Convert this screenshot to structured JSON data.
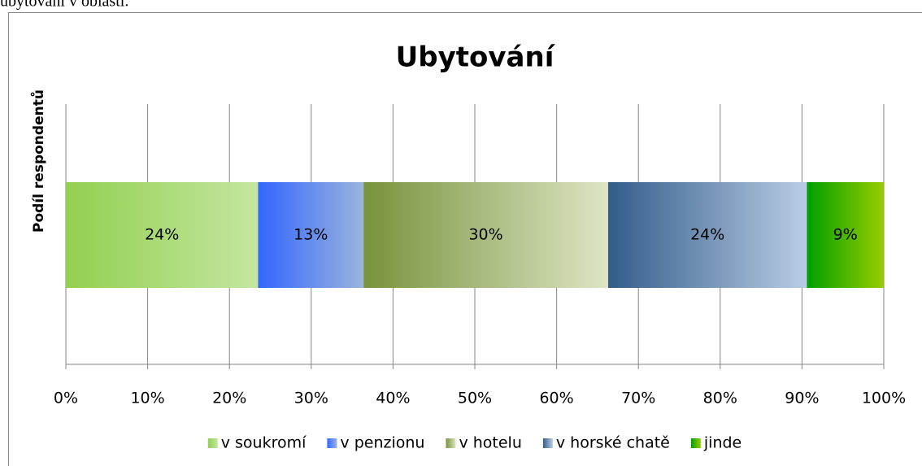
{
  "caption": "ubytování v oblasti.",
  "chart_data": {
    "type": "stacked-barh",
    "title": "Ubytování",
    "ylabel": "Podíl respondentů",
    "series": [
      {
        "name": "v soukromí",
        "color": "#92d050",
        "gradient": [
          "#92d050",
          "#c3e6a0"
        ],
        "values": [
          23.5
        ],
        "value_labels": [
          "24%"
        ]
      },
      {
        "name": "v penzionu",
        "color": "#3366ff",
        "gradient": [
          "#3366ff",
          "#9ab4dc"
        ],
        "values": [
          12.9
        ],
        "value_labels": [
          "13%"
        ]
      },
      {
        "name": "v hotelu",
        "color": "#77933c",
        "gradient": [
          "#77933c",
          "#dde5c5"
        ],
        "values": [
          29.9
        ],
        "value_labels": [
          "30%"
        ]
      },
      {
        "name": "v horské chatě",
        "color": "#335c8a",
        "gradient": [
          "#335c8a",
          "#b9cde5"
        ],
        "values": [
          24.3
        ],
        "value_labels": [
          "24%"
        ]
      },
      {
        "name": "jinde",
        "color": "#00a000",
        "gradient": [
          "#00a000",
          "#99cc00"
        ],
        "values": [
          9.4
        ],
        "value_labels": [
          "9%"
        ]
      }
    ],
    "xlim": [
      0,
      100
    ],
    "xticks": [
      {
        "value": 0,
        "label": "0%"
      },
      {
        "value": 10,
        "label": "10%"
      },
      {
        "value": 20,
        "label": "20%"
      },
      {
        "value": 30,
        "label": "30%"
      },
      {
        "value": 40,
        "label": "40%"
      },
      {
        "value": 50,
        "label": "50%"
      },
      {
        "value": 60,
        "label": "60%"
      },
      {
        "value": 70,
        "label": "70%"
      },
      {
        "value": 80,
        "label": "80%"
      },
      {
        "value": 90,
        "label": "90%"
      },
      {
        "value": 100,
        "label": "100%"
      }
    ],
    "grid": true,
    "legend": "bottom"
  }
}
